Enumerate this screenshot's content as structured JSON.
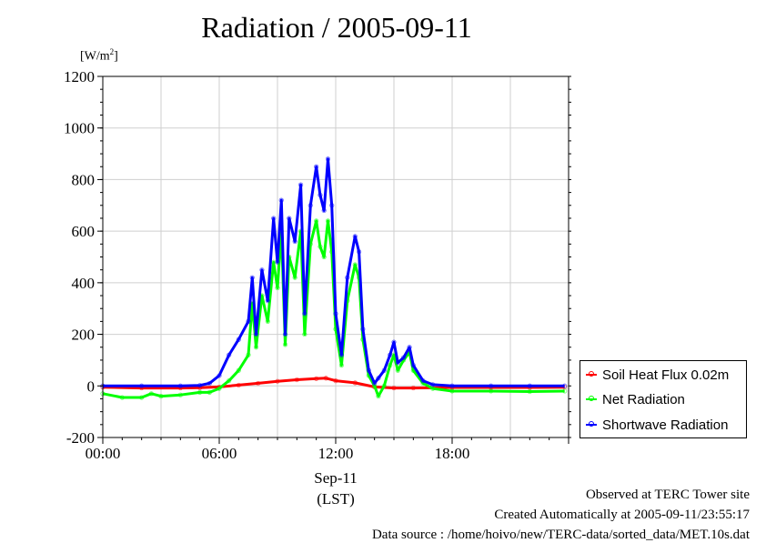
{
  "chart_data": {
    "type": "line",
    "title": "Radiation / 2005-09-11",
    "ylabel_unit": "W/m",
    "ylabel_unit_sup": "2",
    "ylim": [
      -200,
      1200
    ],
    "yticks": [
      -200,
      0,
      200,
      400,
      600,
      800,
      1000,
      1200
    ],
    "xlim_hours": [
      0,
      24
    ],
    "xticks": [
      {
        "hour": 0,
        "label": "00:00"
      },
      {
        "hour": 6,
        "label": "06:00"
      },
      {
        "hour": 12,
        "label": "12:00"
      },
      {
        "hour": 18,
        "label": "18:00"
      }
    ],
    "xlabel_date": "Sep-11",
    "xlabel_tz": "(LST)",
    "grid": true,
    "legend_position": "bottom-right",
    "series": [
      {
        "name": "Soil Heat Flux 0.02m",
        "color": "#ff0000",
        "points": [
          [
            0,
            -5
          ],
          [
            2,
            -8
          ],
          [
            4,
            -8
          ],
          [
            5,
            -7
          ],
          [
            6,
            -4
          ],
          [
            7,
            3
          ],
          [
            8,
            10
          ],
          [
            9,
            18
          ],
          [
            10,
            24
          ],
          [
            11,
            28
          ],
          [
            11.5,
            30
          ],
          [
            12,
            20
          ],
          [
            13,
            12
          ],
          [
            14,
            -4
          ],
          [
            15,
            -8
          ],
          [
            16,
            -8
          ],
          [
            18,
            -6
          ],
          [
            20,
            -6
          ],
          [
            22,
            -6
          ],
          [
            23.8,
            -5
          ]
        ]
      },
      {
        "name": "Net Radiation",
        "color": "#00ff00",
        "points": [
          [
            0,
            -30
          ],
          [
            1,
            -45
          ],
          [
            2,
            -45
          ],
          [
            2.5,
            -30
          ],
          [
            3,
            -40
          ],
          [
            4,
            -35
          ],
          [
            5,
            -25
          ],
          [
            5.5,
            -25
          ],
          [
            6,
            -10
          ],
          [
            6.5,
            20
          ],
          [
            7,
            60
          ],
          [
            7.5,
            120
          ],
          [
            7.7,
            320
          ],
          [
            7.9,
            150
          ],
          [
            8.2,
            350
          ],
          [
            8.5,
            250
          ],
          [
            8.8,
            480
          ],
          [
            9,
            380
          ],
          [
            9.2,
            600
          ],
          [
            9.4,
            160
          ],
          [
            9.6,
            500
          ],
          [
            9.9,
            420
          ],
          [
            10.2,
            600
          ],
          [
            10.4,
            200
          ],
          [
            10.7,
            550
          ],
          [
            11,
            640
          ],
          [
            11.2,
            540
          ],
          [
            11.4,
            500
          ],
          [
            11.6,
            640
          ],
          [
            11.8,
            520
          ],
          [
            12,
            220
          ],
          [
            12.3,
            80
          ],
          [
            12.6,
            330
          ],
          [
            13,
            470
          ],
          [
            13.2,
            420
          ],
          [
            13.4,
            180
          ],
          [
            13.7,
            40
          ],
          [
            14,
            0
          ],
          [
            14.2,
            -40
          ],
          [
            14.5,
            0
          ],
          [
            14.8,
            80
          ],
          [
            15,
            120
          ],
          [
            15.2,
            60
          ],
          [
            15.5,
            100
          ],
          [
            15.8,
            130
          ],
          [
            16,
            60
          ],
          [
            16.5,
            10
          ],
          [
            17,
            -10
          ],
          [
            18,
            -20
          ],
          [
            20,
            -20
          ],
          [
            22,
            -22
          ],
          [
            23.8,
            -20
          ]
        ]
      },
      {
        "name": "Shortwave Radiation",
        "color": "#0000ff",
        "points": [
          [
            0,
            0
          ],
          [
            2,
            0
          ],
          [
            4,
            0
          ],
          [
            5,
            2
          ],
          [
            5.5,
            10
          ],
          [
            6,
            40
          ],
          [
            6.5,
            120
          ],
          [
            7,
            180
          ],
          [
            7.5,
            250
          ],
          [
            7.7,
            420
          ],
          [
            7.9,
            200
          ],
          [
            8.2,
            450
          ],
          [
            8.5,
            330
          ],
          [
            8.8,
            650
          ],
          [
            9,
            480
          ],
          [
            9.2,
            720
          ],
          [
            9.4,
            200
          ],
          [
            9.6,
            650
          ],
          [
            9.9,
            560
          ],
          [
            10.2,
            780
          ],
          [
            10.4,
            280
          ],
          [
            10.7,
            700
          ],
          [
            11,
            850
          ],
          [
            11.2,
            740
          ],
          [
            11.4,
            680
          ],
          [
            11.6,
            880
          ],
          [
            11.8,
            700
          ],
          [
            12,
            280
          ],
          [
            12.3,
            120
          ],
          [
            12.6,
            420
          ],
          [
            13,
            580
          ],
          [
            13.2,
            520
          ],
          [
            13.4,
            220
          ],
          [
            13.7,
            60
          ],
          [
            14,
            10
          ],
          [
            14.2,
            30
          ],
          [
            14.5,
            60
          ],
          [
            14.8,
            120
          ],
          [
            15,
            170
          ],
          [
            15.2,
            90
          ],
          [
            15.5,
            110
          ],
          [
            15.8,
            150
          ],
          [
            16,
            80
          ],
          [
            16.5,
            20
          ],
          [
            17,
            5
          ],
          [
            18,
            0
          ],
          [
            20,
            0
          ],
          [
            22,
            0
          ],
          [
            23.8,
            0
          ]
        ]
      }
    ]
  },
  "footer": {
    "line1": "Observed at TERC Tower site",
    "line2": "Created Automatically at 2005-09-11/23:55:17",
    "line3": "Data source : /home/hoivo/new/TERC-data/sorted_data/MET.10s.dat"
  }
}
